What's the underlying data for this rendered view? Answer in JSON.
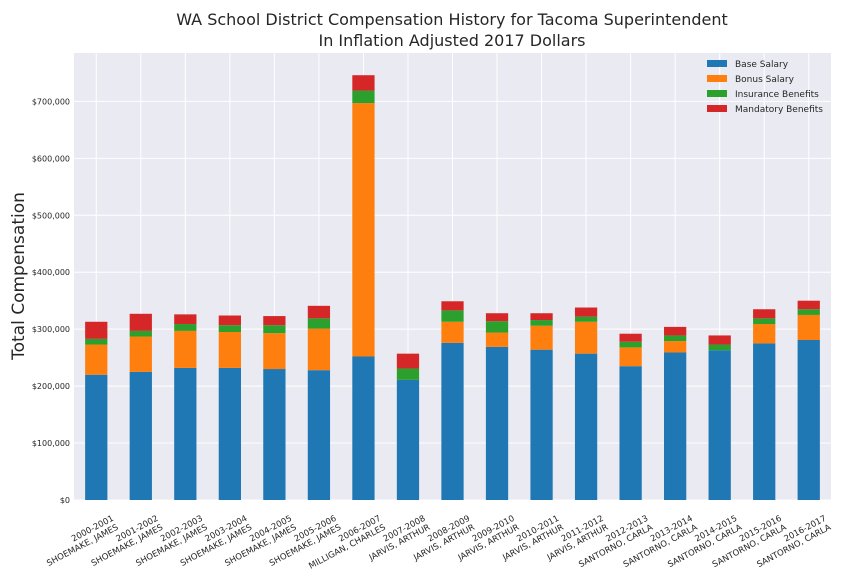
{
  "chart_data": {
    "type": "bar",
    "stacked": true,
    "title_lines": [
      "WA School District Compensation History for Tacoma Superintendent",
      "In Inflation Adjusted 2017 Dollars"
    ],
    "xlabel": "",
    "ylabel": "Total Compensation",
    "ylim": [
      0,
      785000
    ],
    "yticks": [
      0,
      100000,
      200000,
      300000,
      400000,
      500000,
      600000,
      700000
    ],
    "ytick_labels": [
      "$0",
      "$100,000",
      "$200,000",
      "$300,000",
      "$400,000",
      "$500,000",
      "$600,000",
      "$700,000"
    ],
    "grid": true,
    "legend_position": "top-right",
    "categories": [
      [
        "2000-2001",
        "SHOEMAKE, JAMES"
      ],
      [
        "2001-2002",
        "SHOEMAKE, JAMES"
      ],
      [
        "2002-2003",
        "SHOEMAKE, JAMES"
      ],
      [
        "2003-2004",
        "SHOEMAKE, JAMES"
      ],
      [
        "2004-2005",
        "SHOEMAKE, JAMES"
      ],
      [
        "2005-2006",
        "SHOEMAKE, JAMES"
      ],
      [
        "2006-2007",
        "MILLIGAN, CHARLES"
      ],
      [
        "2007-2008",
        "JARVIS, ARTHUR"
      ],
      [
        "2008-2009",
        "JARVIS, ARTHUR"
      ],
      [
        "2009-2010",
        "JARVIS, ARTHUR"
      ],
      [
        "2010-2011",
        "JARVIS, ARTHUR"
      ],
      [
        "2011-2012",
        "JARVIS, ARTHUR"
      ],
      [
        "2012-2013",
        "SANTORNO, CARLA"
      ],
      [
        "2013-2014",
        "SANTORNO, CARLA"
      ],
      [
        "2014-2015",
        "SANTORNO, CARLA"
      ],
      [
        "2015-2016",
        "SANTORNO, CARLA"
      ],
      [
        "2016-2017",
        "SANTORNO, CARLA"
      ]
    ],
    "series": [
      {
        "name": "Base Salary",
        "color": "#1f77b4",
        "values": [
          220000,
          225000,
          232000,
          232000,
          230000,
          228000,
          252000,
          211000,
          276000,
          269000,
          264000,
          257000,
          235000,
          259000,
          263000,
          275000,
          281000
        ]
      },
      {
        "name": "Bonus Salary",
        "color": "#ff7f0e",
        "values": [
          53000,
          62000,
          65000,
          63000,
          63000,
          73000,
          445000,
          0,
          37000,
          25000,
          42000,
          56000,
          33000,
          20000,
          0,
          34000,
          44000
        ]
      },
      {
        "name": "Insurance Benefits",
        "color": "#2ca02c",
        "values": [
          10000,
          10000,
          12000,
          12000,
          14000,
          18000,
          22000,
          20000,
          20000,
          20000,
          10000,
          9000,
          10000,
          10000,
          10000,
          10000,
          10000
        ]
      },
      {
        "name": "Mandatory Benefits",
        "color": "#d62728",
        "values": [
          30000,
          30000,
          17000,
          17000,
          16000,
          22000,
          27000,
          26000,
          16000,
          14000,
          12000,
          16000,
          14000,
          15000,
          16000,
          16000,
          15000
        ]
      }
    ]
  }
}
